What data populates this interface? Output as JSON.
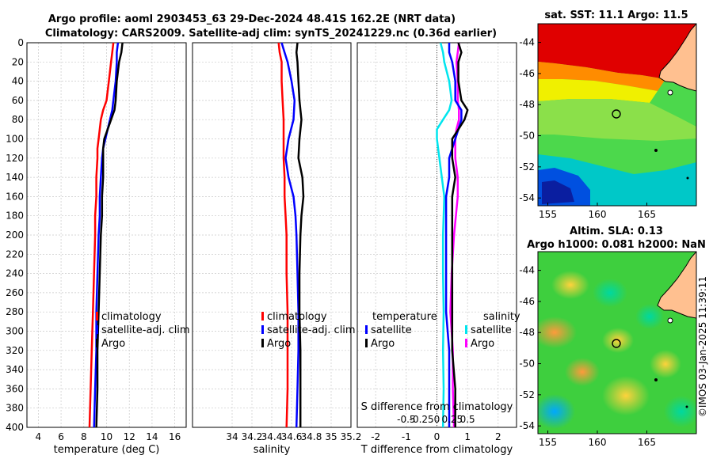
{
  "header": {
    "title_line1": "Argo profile: aoml 2903453_63 29-Dec-2024 48.41S 162.2E (NRT data)",
    "title_line2": "Climatology: CARS2009. Satellite-adj clim: synTS_20241229.nc (0.36d earlier)"
  },
  "credit": "©IMOS 03-Jan-2025 11:39:11",
  "depth_ticks": [
    "0",
    "20",
    "40",
    "60",
    "80",
    "100",
    "120",
    "140",
    "160",
    "180",
    "200",
    "220",
    "240",
    "260",
    "280",
    "300",
    "320",
    "340",
    "360",
    "380",
    "400"
  ],
  "colors": {
    "climatology": "#ff0000",
    "satellite": "#0000ff",
    "argo": "#000000",
    "salinity_sat": "#00e5ee",
    "salinity_argo": "#ff00ff"
  },
  "chart_data": [
    {
      "type": "line",
      "title": "",
      "xlabel": "temperature (deg C)",
      "ylabel": "depth",
      "xlim": [
        3,
        17
      ],
      "ylim": [
        400,
        0
      ],
      "xticks": [
        "4",
        "6",
        "8",
        "10",
        "12",
        "14",
        "16"
      ],
      "legend": [
        "climatology",
        "satellite-adj. clim",
        "Argo"
      ],
      "depth": [
        0,
        10,
        20,
        40,
        60,
        70,
        80,
        90,
        100,
        110,
        120,
        140,
        160,
        180,
        200,
        240,
        280,
        320,
        360,
        400
      ],
      "series": [
        {
          "name": "climatology",
          "values": [
            10.6,
            10.5,
            10.4,
            10.2,
            10.0,
            9.7,
            9.5,
            9.4,
            9.3,
            9.2,
            9.2,
            9.1,
            9.1,
            9.0,
            9.0,
            8.9,
            8.8,
            8.7,
            8.6,
            8.5
          ]
        },
        {
          "name": "satellite-adj. clim",
          "values": [
            11.0,
            10.9,
            10.9,
            10.8,
            10.6,
            10.5,
            10.3,
            10.1,
            9.9,
            9.7,
            9.6,
            9.5,
            9.4,
            9.4,
            9.3,
            9.2,
            9.1,
            9.1,
            9.0,
            8.9
          ]
        },
        {
          "name": "Argo",
          "values": [
            11.4,
            11.3,
            11.1,
            10.9,
            10.8,
            10.7,
            10.4,
            10.1,
            9.8,
            9.7,
            9.7,
            9.7,
            9.6,
            9.6,
            9.5,
            9.4,
            9.3,
            9.2,
            9.2,
            9.1
          ]
        }
      ]
    },
    {
      "type": "line",
      "title": "",
      "xlabel": "salinity",
      "ylabel": "",
      "xlim": [
        33.6,
        35.2
      ],
      "ylim": [
        400,
        0
      ],
      "xticks": [
        "34",
        "34.2",
        "34.4",
        "34.6",
        "34.8",
        "35",
        "35.2"
      ],
      "legend": [
        "climatology",
        "satellite-adj. clim",
        "Argo"
      ],
      "depth": [
        0,
        10,
        20,
        40,
        60,
        80,
        100,
        120,
        140,
        160,
        180,
        200,
        240,
        280,
        320,
        360,
        400
      ],
      "series": [
        {
          "name": "climatology",
          "values": [
            34.47,
            34.48,
            34.5,
            34.5,
            34.51,
            34.52,
            34.52,
            34.52,
            34.53,
            34.53,
            34.54,
            34.55,
            34.55,
            34.56,
            34.56,
            34.56,
            34.55
          ]
        },
        {
          "name": "satellite-adj. clim",
          "values": [
            34.5,
            34.53,
            34.56,
            34.6,
            34.63,
            34.62,
            34.57,
            34.54,
            34.57,
            34.62,
            34.64,
            34.65,
            34.66,
            34.67,
            34.67,
            34.66,
            34.65
          ]
        },
        {
          "name": "Argo",
          "values": [
            34.66,
            34.65,
            34.66,
            34.67,
            34.68,
            34.7,
            34.68,
            34.67,
            34.71,
            34.72,
            34.7,
            34.69,
            34.68,
            34.68,
            34.69,
            34.69,
            34.69
          ]
        }
      ]
    },
    {
      "type": "line",
      "title": "",
      "xlabel": "T difference from climatology",
      "xlabel_top": "S difference from climatology",
      "ylabel": "",
      "xlim": [
        -2.6,
        2.6
      ],
      "ylim": [
        400,
        0
      ],
      "xticks": [
        "-2",
        "-1",
        "0",
        "1",
        "2"
      ],
      "xticks_salinity": [
        "-0.5",
        "-0.25",
        "0",
        "0.25",
        "0.5"
      ],
      "legend_temperature_title": "temperature",
      "legend_salinity_title": "salinity",
      "legend": [
        "satellite",
        "Argo",
        "satellite",
        "Argo"
      ],
      "depth": [
        0,
        10,
        20,
        40,
        60,
        70,
        80,
        90,
        100,
        120,
        140,
        160,
        200,
        240,
        280,
        320,
        360,
        400
      ],
      "series": [
        {
          "name": "temperature satellite",
          "values": [
            0.4,
            0.4,
            0.5,
            0.6,
            0.6,
            0.8,
            0.8,
            0.7,
            0.6,
            0.4,
            0.4,
            0.3,
            0.3,
            0.3,
            0.3,
            0.4,
            0.4,
            0.4
          ]
        },
        {
          "name": "temperature Argo",
          "values": [
            0.7,
            0.8,
            0.7,
            0.7,
            0.8,
            1.0,
            0.9,
            0.7,
            0.5,
            0.5,
            0.6,
            0.5,
            0.5,
            0.5,
            0.5,
            0.5,
            0.6,
            0.6
          ]
        },
        {
          "name": "salinity satellite",
          "values": [
            0.06,
            0.1,
            0.12,
            0.2,
            0.24,
            0.2,
            0.1,
            0.0,
            0.0,
            0.04,
            0.08,
            0.12,
            0.1,
            0.1,
            0.11,
            0.1,
            0.11,
            0.1
          ]
        },
        {
          "name": "salinity Argo",
          "values": [
            0.36,
            0.34,
            0.32,
            0.34,
            0.34,
            0.36,
            0.36,
            0.32,
            0.3,
            0.3,
            0.34,
            0.34,
            0.28,
            0.24,
            0.22,
            0.26,
            0.26,
            0.28
          ]
        }
      ]
    },
    {
      "type": "heatmap",
      "title": "sat. SST: 11.1 Argo: 11.5",
      "xlabel": "",
      "ylabel": "",
      "xlim": [
        154,
        170
      ],
      "ylim": [
        -54.5,
        -42.8
      ],
      "xticks": [
        "155",
        "160",
        "165"
      ],
      "yticks": [
        "-44",
        "-46",
        "-48",
        "-50",
        "-52",
        "-54"
      ],
      "marker": {
        "lon": 162.2,
        "lat": -48.41
      }
    },
    {
      "type": "heatmap",
      "title_line1": "Altim. SLA: 0.13",
      "title_line2": "Argo h1000: 0.081 h2000: NaN",
      "xlabel": "",
      "ylabel": "",
      "xlim": [
        154,
        170
      ],
      "ylim": [
        -54.5,
        -42.8
      ],
      "xticks": [
        "155",
        "160",
        "165"
      ],
      "yticks": [
        "-44",
        "-46",
        "-48",
        "-50",
        "-52",
        "-54"
      ],
      "marker": {
        "lon": 162.2,
        "lat": -48.41
      }
    }
  ]
}
